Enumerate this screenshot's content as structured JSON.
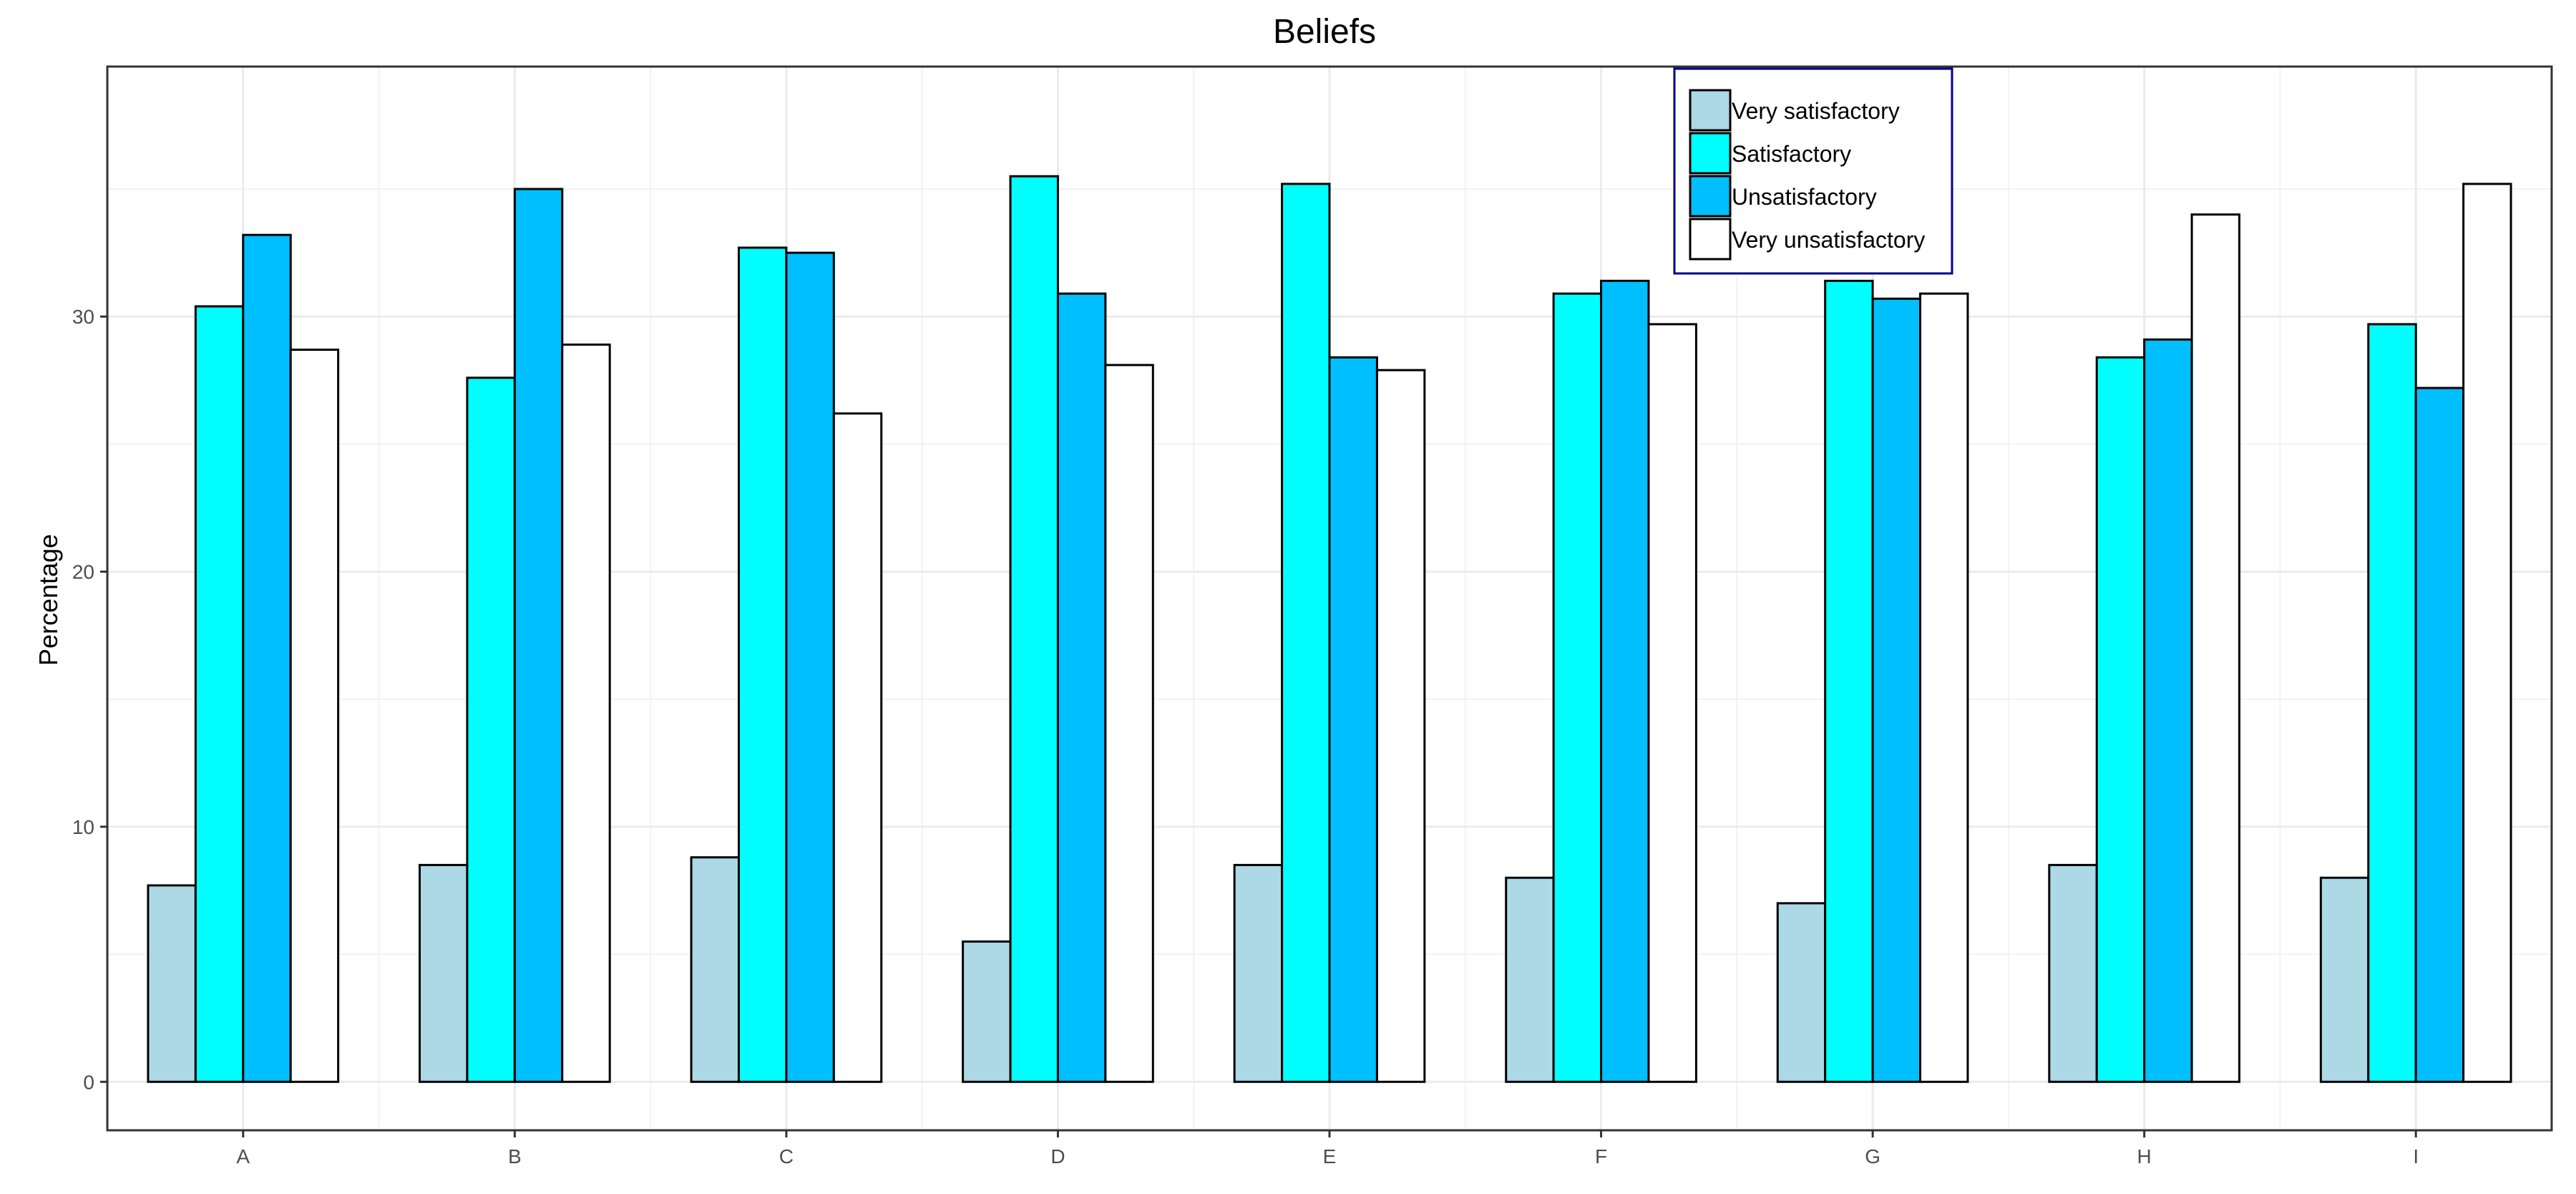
{
  "chart_data": {
    "type": "bar",
    "title": "Beliefs",
    "xlabel": "",
    "ylabel": "Percentage",
    "ylim": [
      -1.9,
      39.8
    ],
    "yticks": [
      0,
      10,
      20,
      30
    ],
    "grid": true,
    "legend_position": "top-right",
    "categories": [
      "A",
      "B",
      "C",
      "D",
      "E",
      "F",
      "G",
      "H",
      "I"
    ],
    "series": [
      {
        "name": "Very satisfactory",
        "color": "#add8e6",
        "values": [
          7.7,
          8.5,
          8.8,
          5.5,
          8.5,
          8.0,
          7.0,
          8.5,
          8.0
        ]
      },
      {
        "name": "Satisfactory",
        "color": "#00ffff",
        "values": [
          30.4,
          27.6,
          32.7,
          35.5,
          35.2,
          30.9,
          31.4,
          28.4,
          29.7
        ]
      },
      {
        "name": "Unsatisfactory",
        "color": "#00bfff",
        "values": [
          33.2,
          35.0,
          32.5,
          30.9,
          28.4,
          31.4,
          30.7,
          29.1,
          27.2
        ]
      },
      {
        "name": "Very unsatisfactory",
        "color": "#ffffff",
        "values": [
          28.7,
          28.9,
          26.2,
          28.1,
          27.9,
          29.7,
          30.9,
          34.0,
          35.2
        ]
      }
    ]
  }
}
